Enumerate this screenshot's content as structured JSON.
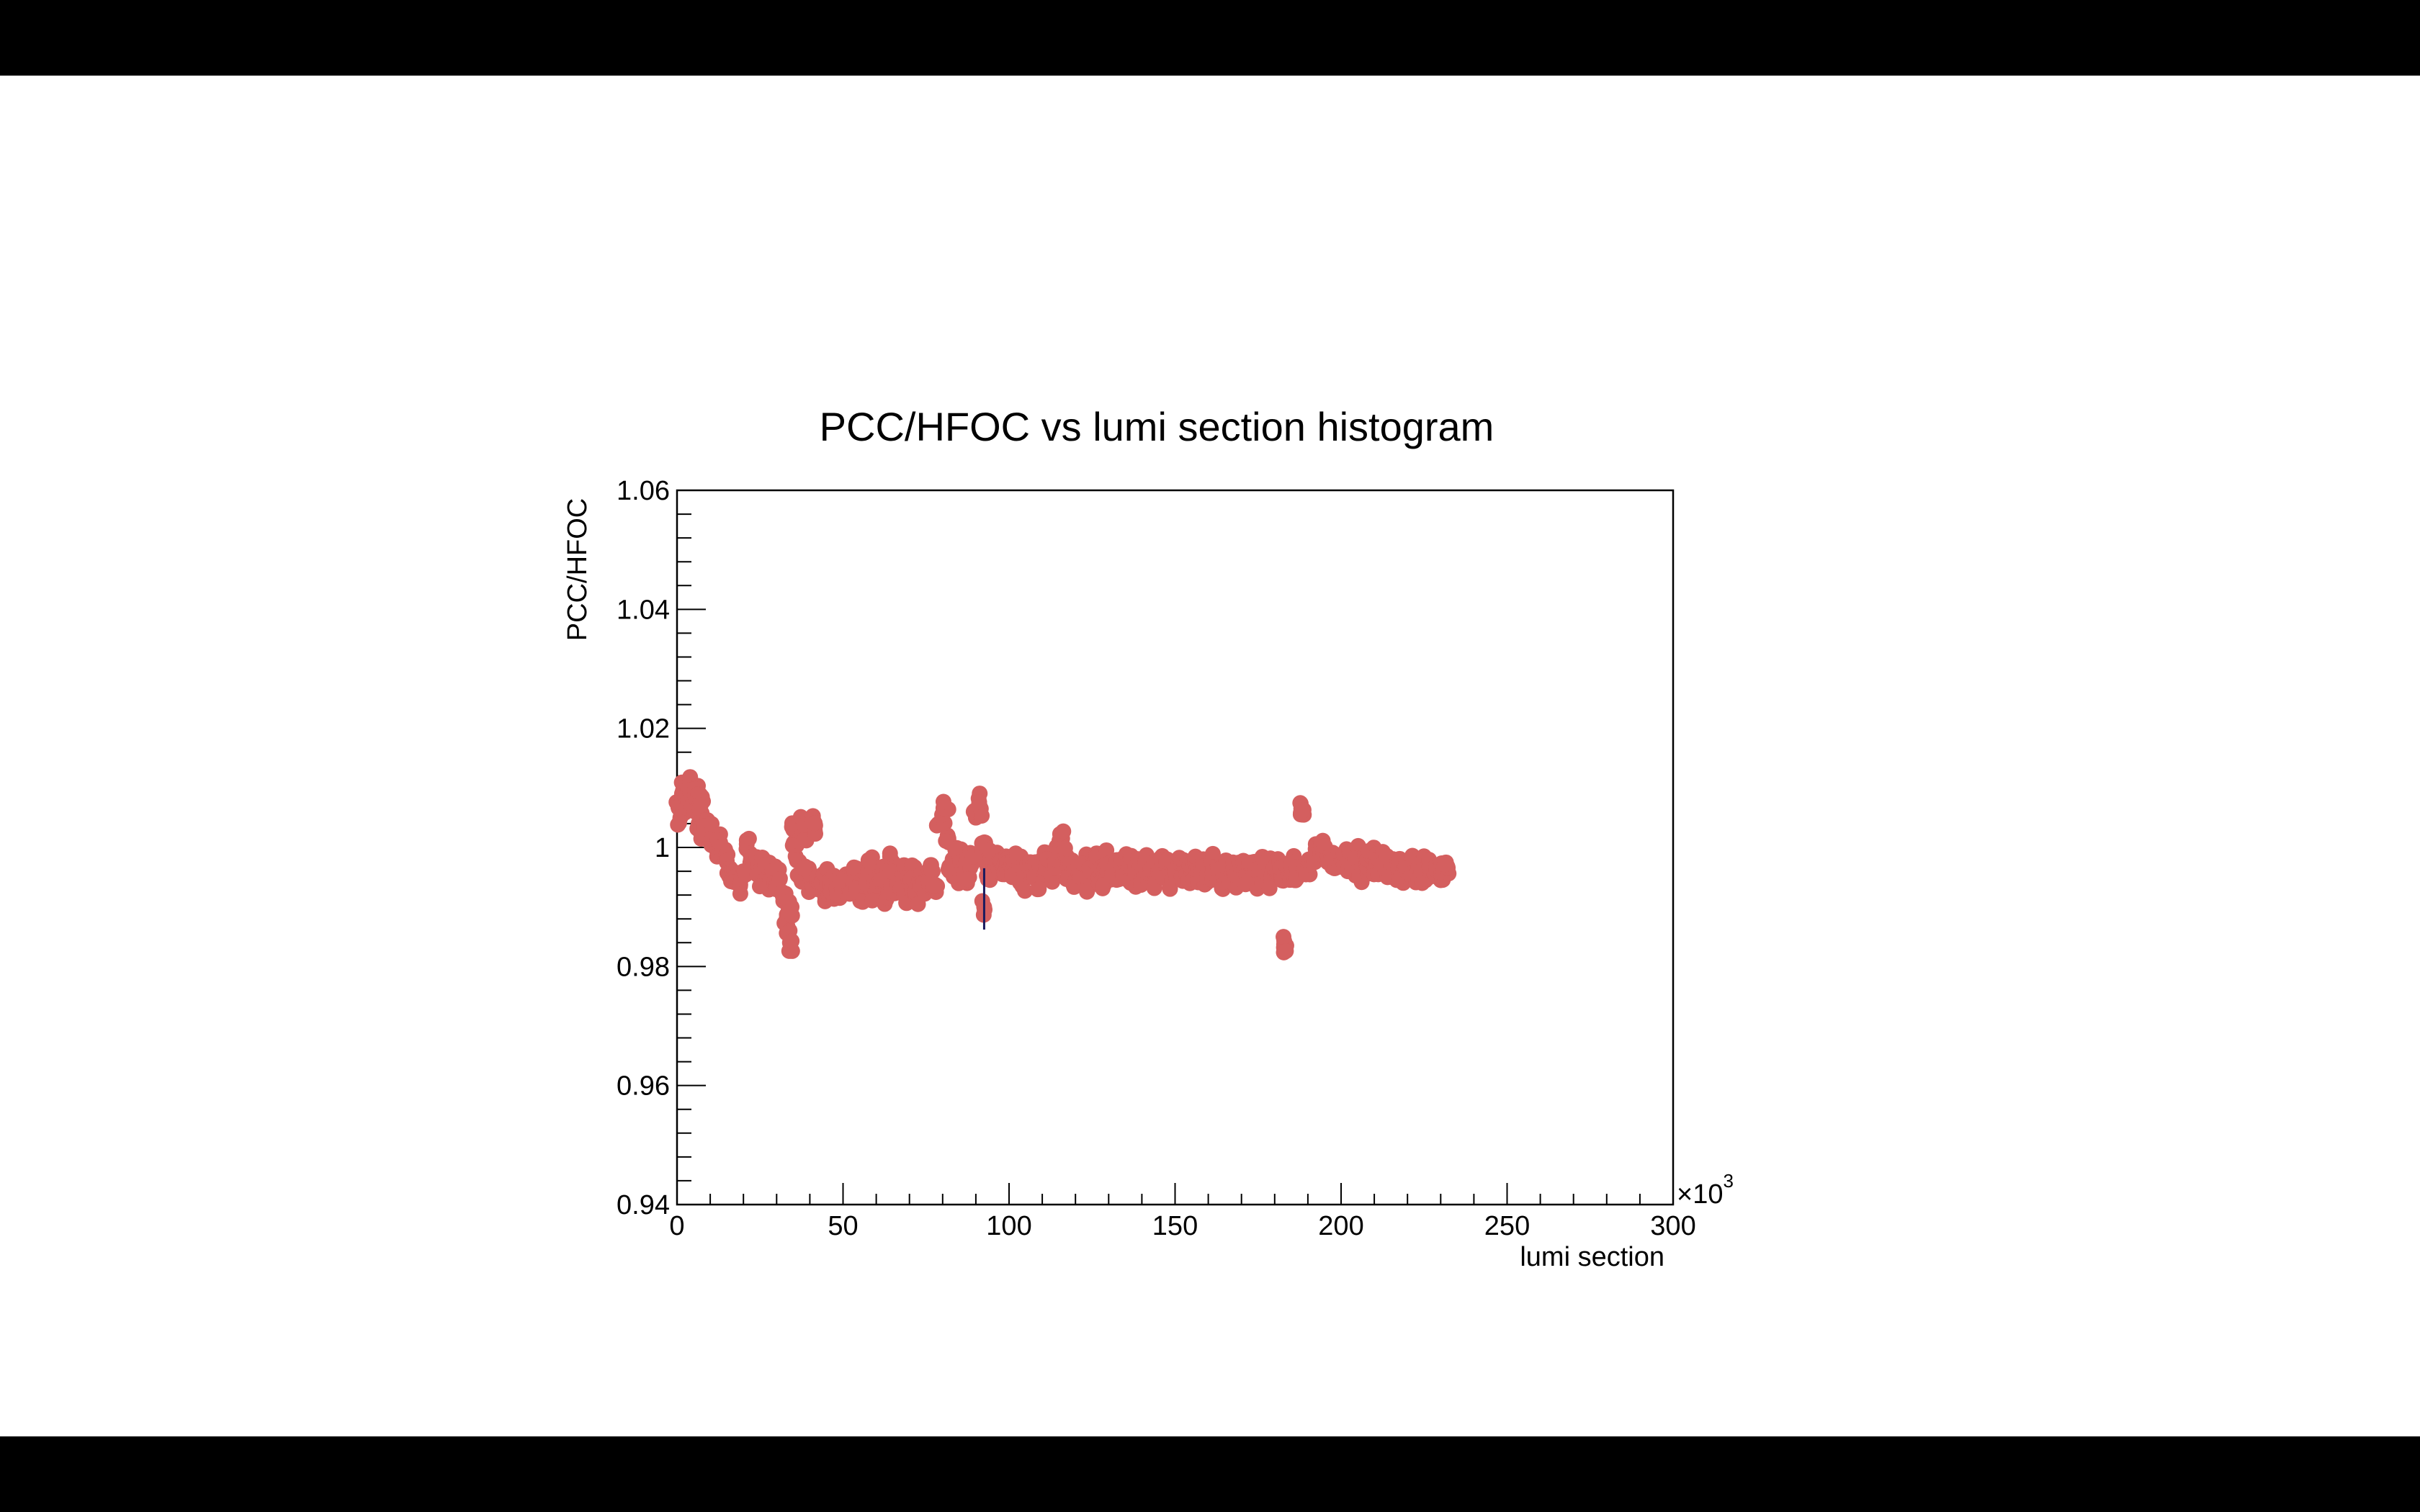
{
  "chart_data": {
    "type": "scatter",
    "title": "PCC/HFOC vs lumi section histogram",
    "xlabel": "lumi section",
    "ylabel": "PCC/HFOC",
    "x_multiplier_label": "×10",
    "x_multiplier_exponent": "3",
    "xlim": [
      0,
      300
    ],
    "ylim": [
      0.94,
      1.06
    ],
    "x_ticks": [
      0,
      50,
      100,
      150,
      200,
      250,
      300
    ],
    "x_tick_labels": [
      "0",
      "50",
      "100",
      "150",
      "200",
      "250",
      "300"
    ],
    "y_ticks": [
      0.94,
      0.96,
      0.98,
      1.0,
      1.02,
      1.04,
      1.06
    ],
    "y_tick_labels": [
      "0.94",
      "0.96",
      "0.98",
      "1",
      "1.02",
      "1.04",
      "1.06"
    ],
    "grid": false,
    "legend": "none",
    "marker_color": "#d45f5f",
    "error_bar_color": "#1a1a5e",
    "series": [
      {
        "points": [
          [
            0.5,
            1.0068
          ],
          [
            1.0,
            1.005
          ],
          [
            1.5,
            1.0082
          ],
          [
            2.0,
            1.0095
          ],
          [
            2.5,
            1.006
          ],
          [
            3.0,
            1.0102
          ],
          [
            3.5,
            1.0075
          ],
          [
            4.0,
            1.011
          ],
          [
            4.5,
            1.0088
          ],
          [
            5.0,
            1.0065
          ],
          [
            5.5,
            1.0098
          ],
          [
            6.0,
            1.0078
          ],
          [
            6.5,
            1.004
          ],
          [
            7.0,
            1.0062
          ],
          [
            7.5,
            1.0085
          ],
          [
            8.0,
            1.003
          ],
          [
            9.0,
            1.0045
          ],
          [
            10.0,
            1.001
          ],
          [
            11.0,
            1.0025
          ],
          [
            12.0,
            0.9995
          ],
          [
            13.0,
            1.0008
          ],
          [
            14.0,
            0.9985
          ],
          [
            15.0,
            0.9975
          ],
          [
            16.0,
            0.9965
          ],
          [
            17.0,
            0.9955
          ],
          [
            18.0,
            0.9945
          ],
          [
            19.0,
            0.9935
          ],
          [
            20.0,
            0.996
          ],
          [
            21.0,
            1.0012
          ],
          [
            22.0,
            0.999
          ],
          [
            23.0,
            0.9972
          ],
          [
            24.0,
            0.9982
          ],
          [
            25.0,
            0.995
          ],
          [
            26.0,
            0.9968
          ],
          [
            27.0,
            0.9975
          ],
          [
            28.0,
            0.9942
          ],
          [
            29.0,
            0.9958
          ],
          [
            30.0,
            0.993
          ],
          [
            31.0,
            0.9948
          ],
          [
            32.0,
            0.991
          ],
          [
            33.0,
            0.988
          ],
          [
            33.5,
            0.986
          ],
          [
            34.0,
            0.984
          ],
          [
            34.5,
            0.99
          ],
          [
            35.0,
            1.003
          ],
          [
            35.5,
            1.001
          ],
          [
            36.0,
            0.998
          ],
          [
            37.0,
            0.995
          ],
          [
            38.0,
            1.004
          ],
          [
            38.5,
            1.0025
          ],
          [
            39.0,
            0.996
          ],
          [
            40.0,
            0.994
          ],
          [
            41.0,
            1.0042
          ],
          [
            41.5,
            1.0028
          ],
          [
            42.0,
            0.993
          ],
          [
            43.0,
            0.9945
          ],
          [
            44.0,
            0.9925
          ],
          [
            45.0,
            0.995
          ],
          [
            46.0,
            0.9935
          ],
          [
            47.0,
            0.992
          ],
          [
            48.0,
            0.9945
          ],
          [
            49.0,
            0.9915
          ],
          [
            50.0,
            0.9938
          ],
          [
            51.0,
            0.9955
          ],
          [
            52.0,
            0.9922
          ],
          [
            53.0,
            0.9948
          ],
          [
            54.0,
            0.9965
          ],
          [
            55.0,
            0.993
          ],
          [
            56.0,
            0.991
          ],
          [
            57.0,
            0.9945
          ],
          [
            58.0,
            0.9975
          ],
          [
            59.0,
            0.992
          ],
          [
            60.0,
            0.995
          ],
          [
            61.0,
            0.9935
          ],
          [
            62.0,
            0.996
          ],
          [
            63.0,
            0.9912
          ],
          [
            64.0,
            0.9945
          ],
          [
            65.0,
            0.9975
          ],
          [
            66.0,
            0.9925
          ],
          [
            67.0,
            0.9938
          ],
          [
            68.0,
            0.9955
          ],
          [
            69.0,
            0.9915
          ],
          [
            70.0,
            0.994
          ],
          [
            71.0,
            0.9962
          ],
          [
            72.0,
            0.992
          ],
          [
            73.0,
            0.9945
          ],
          [
            74.0,
            0.993
          ],
          [
            75.0,
            0.995
          ],
          [
            76.0,
            0.9935
          ],
          [
            77.0,
            0.996
          ],
          [
            78.0,
            0.9925
          ],
          [
            79.0,
            1.004
          ],
          [
            80.0,
            1.0055
          ],
          [
            81.0,
            1.0065
          ],
          [
            81.5,
            1.002
          ],
          [
            82.0,
            0.9968
          ],
          [
            83.0,
            0.998
          ],
          [
            84.0,
            0.9955
          ],
          [
            85.0,
            0.999
          ],
          [
            86.0,
            0.9965
          ],
          [
            87.0,
            0.9975
          ],
          [
            88.0,
            0.995
          ],
          [
            89.0,
            0.9985
          ],
          [
            90.0,
            1.005
          ],
          [
            91.0,
            1.0075
          ],
          [
            91.5,
            1.0065
          ],
          [
            92.0,
            0.9995
          ],
          [
            92.5,
            0.99
          ],
          [
            93.0,
            0.9975
          ],
          [
            94.0,
            0.996
          ],
          [
            95.0,
            0.999
          ],
          [
            96.0,
            0.997
          ],
          [
            97.0,
            0.9985
          ],
          [
            98.0,
            0.9955
          ],
          [
            99.0,
            0.9975
          ],
          [
            100.0,
            0.9965
          ],
          [
            101.0,
            0.995
          ],
          [
            102.0,
            0.999
          ],
          [
            103.0,
            0.997
          ],
          [
            104.0,
            0.9935
          ],
          [
            105.0,
            0.996
          ],
          [
            106.0,
            0.9975
          ],
          [
            107.0,
            0.995
          ],
          [
            108.0,
            0.9965
          ],
          [
            109.0,
            0.9945
          ],
          [
            110.0,
            0.998
          ],
          [
            111.0,
            0.996
          ],
          [
            112.0,
            0.9975
          ],
          [
            113.0,
            0.9955
          ],
          [
            114.0,
            0.997
          ],
          [
            115.0,
            1.0005
          ],
          [
            116.0,
            1.0015
          ],
          [
            117.0,
            0.9985
          ],
          [
            118.0,
            0.996
          ],
          [
            119.0,
            0.997
          ],
          [
            120.0,
            0.9945
          ],
          [
            121.0,
            0.9965
          ],
          [
            122.0,
            0.995
          ],
          [
            123.0,
            0.9975
          ],
          [
            124.0,
            0.994
          ],
          [
            125.0,
            0.996
          ],
          [
            126.0,
            0.9975
          ],
          [
            127.0,
            0.995
          ],
          [
            128.0,
            0.9968
          ],
          [
            129.0,
            0.9945
          ],
          [
            130.0,
            0.998
          ],
          [
            131.0,
            0.9958
          ],
          [
            132.0,
            0.997
          ],
          [
            133.0,
            0.9948
          ],
          [
            134.0,
            0.9965
          ],
          [
            135.0,
            0.9955
          ],
          [
            136.0,
            0.9975
          ],
          [
            137.0,
            0.995
          ],
          [
            138.0,
            0.9968
          ],
          [
            139.0,
            0.9945
          ],
          [
            140.0,
            0.996
          ],
          [
            141.0,
            0.9975
          ],
          [
            142.0,
            0.9955
          ],
          [
            143.0,
            0.9965
          ],
          [
            144.0,
            0.9942
          ],
          [
            145.0,
            0.9958
          ],
          [
            146.0,
            0.9972
          ],
          [
            147.0,
            0.995
          ],
          [
            148.0,
            0.9966
          ],
          [
            149.0,
            0.9944
          ],
          [
            150.0,
            0.996
          ],
          [
            151.0,
            0.9974
          ],
          [
            152.0,
            0.9952
          ],
          [
            153.0,
            0.9965
          ],
          [
            154.0,
            0.9945
          ],
          [
            155.0,
            0.996
          ],
          [
            156.0,
            0.9975
          ],
          [
            157.0,
            0.995
          ],
          [
            158.0,
            0.9965
          ],
          [
            159.0,
            0.9942
          ],
          [
            160.0,
            0.996
          ],
          [
            161.0,
            0.9974
          ],
          [
            162.0,
            0.995
          ],
          [
            163.0,
            0.9966
          ],
          [
            164.0,
            0.9945
          ],
          [
            165.0,
            0.9958
          ],
          [
            166.0,
            0.9972
          ],
          [
            167.0,
            0.9952
          ],
          [
            168.0,
            0.9968
          ],
          [
            169.0,
            0.9944
          ],
          [
            170.0,
            0.996
          ],
          [
            171.0,
            0.9975
          ],
          [
            172.0,
            0.995
          ],
          [
            173.0,
            0.9965
          ],
          [
            174.0,
            0.9945
          ],
          [
            175.0,
            0.9962
          ],
          [
            176.0,
            0.9972
          ],
          [
            177.0,
            0.995
          ],
          [
            178.0,
            0.9966
          ],
          [
            179.0,
            0.9945
          ],
          [
            180.0,
            0.996
          ],
          [
            181.0,
            0.9974
          ],
          [
            182.0,
            0.995
          ],
          [
            183.0,
            0.9838
          ],
          [
            183.5,
            0.9835
          ],
          [
            184.0,
            0.9955
          ],
          [
            185.0,
            0.997
          ],
          [
            186.0,
            0.9945
          ],
          [
            187.0,
            0.996
          ],
          [
            188.0,
            1.0065
          ],
          [
            188.5,
            1.0055
          ],
          [
            189.0,
            0.996
          ],
          [
            190.0,
            0.997
          ],
          [
            191.0,
            0.9975
          ],
          [
            192.0,
            0.9985
          ],
          [
            193.0,
            0.9995
          ],
          [
            194.0,
            1.0002
          ],
          [
            195.0,
            0.999
          ],
          [
            196.0,
            0.9975
          ],
          [
            197.0,
            0.9985
          ],
          [
            198.0,
            0.9965
          ],
          [
            199.0,
            0.998
          ],
          [
            200.0,
            0.997
          ],
          [
            201.0,
            0.999
          ],
          [
            202.0,
            0.996
          ],
          [
            203.0,
            0.9982
          ],
          [
            204.0,
            0.9968
          ],
          [
            205.0,
            0.9988
          ],
          [
            206.0,
            0.9955
          ],
          [
            207.0,
            0.9975
          ],
          [
            208.0,
            0.9965
          ],
          [
            209.0,
            0.9985
          ],
          [
            210.0,
            0.9955
          ],
          [
            211.0,
            0.9972
          ],
          [
            212.0,
            0.9962
          ],
          [
            213.0,
            0.998
          ],
          [
            214.0,
            0.995
          ],
          [
            215.0,
            0.997
          ],
          [
            216.0,
            0.996
          ],
          [
            217.0,
            0.9978
          ],
          [
            218.0,
            0.9952
          ],
          [
            219.0,
            0.9968
          ],
          [
            220.0,
            0.9958
          ],
          [
            221.0,
            0.9975
          ],
          [
            222.0,
            0.995
          ],
          [
            223.0,
            0.9965
          ],
          [
            224.0,
            0.9955
          ],
          [
            225.0,
            0.9972
          ],
          [
            226.0,
            0.9948
          ],
          [
            227.0,
            0.9966
          ],
          [
            228.0,
            0.9955
          ],
          [
            229.0,
            0.997
          ],
          [
            230.0,
            0.9945
          ],
          [
            231.0,
            0.996
          ],
          [
            232.0,
            0.9968
          ]
        ]
      }
    ],
    "error_bars": [
      {
        "x": 92.5,
        "y_low": 0.9862,
        "y_high": 0.9965
      }
    ]
  }
}
